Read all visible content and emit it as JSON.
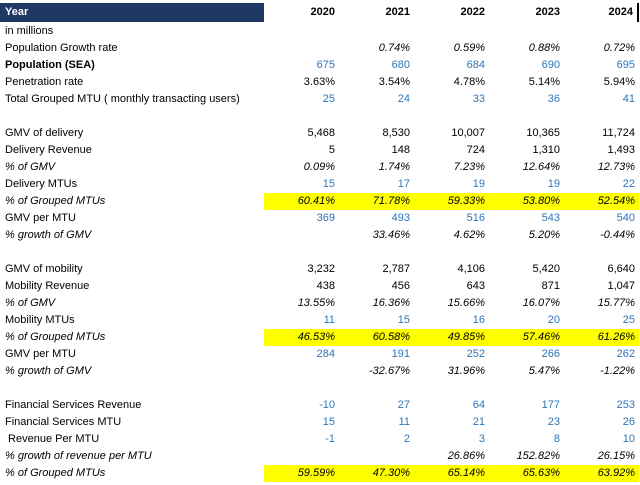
{
  "sheet": {
    "header": {
      "label": "Year",
      "years": [
        "2020",
        "2021",
        "2022",
        "2023",
        "2024"
      ]
    },
    "colors": {
      "header_bg": "#1F3864",
      "header_text": "#FFFFFF",
      "value_blue": "#2E75B6",
      "highlight_yellow": "#FFFF00",
      "text": "#000000"
    },
    "rows": [
      {
        "label": "in millions",
        "values": [
          "",
          "",
          "",
          "",
          ""
        ]
      },
      {
        "label": "Population Growth rate",
        "values": [
          "",
          "0.74%",
          "0.59%",
          "0.88%",
          "0.72%"
        ],
        "italic_values": true
      },
      {
        "label": "Population (SEA)",
        "values": [
          "675",
          "680",
          "684",
          "690",
          "695"
        ],
        "label_bold": true,
        "values_blue": true
      },
      {
        "label": "Penetration rate",
        "values": [
          "3.63%",
          "3.54%",
          "4.78%",
          "5.14%",
          "5.94%"
        ]
      },
      {
        "label": "Total Grouped MTU ( monthly transacting users)",
        "values": [
          "25",
          "24",
          "33",
          "36",
          "41"
        ],
        "values_blue": true
      },
      {
        "blank": true
      },
      {
        "label": "GMV of delivery",
        "values": [
          "5,468",
          "8,530",
          "10,007",
          "10,365",
          "11,724"
        ]
      },
      {
        "label": "Delivery Revenue",
        "values": [
          "5",
          "148",
          "724",
          "1,310",
          "1,493"
        ]
      },
      {
        "label": "% of GMV",
        "values": [
          "0.09%",
          "1.74%",
          "7.23%",
          "12.64%",
          "12.73%"
        ],
        "italic_label": true,
        "italic_values": true
      },
      {
        "label": "Delivery MTUs",
        "values": [
          "15",
          "17",
          "19",
          "19",
          "22"
        ],
        "values_blue": true
      },
      {
        "label": "% of Grouped MTUs",
        "values": [
          "60.41%",
          "71.78%",
          "59.33%",
          "53.80%",
          "52.54%"
        ],
        "italic_label": true,
        "italic_values": true,
        "highlight": true
      },
      {
        "label": "GMV per MTU",
        "values": [
          "369",
          "493",
          "516",
          "543",
          "540"
        ],
        "values_blue": true
      },
      {
        "label": "% growth of GMV",
        "values": [
          "",
          "33.46%",
          "4.62%",
          "5.20%",
          "-0.44%"
        ],
        "italic_label": true,
        "italic_values": true
      },
      {
        "blank": true
      },
      {
        "label": "GMV of mobility",
        "values": [
          "3,232",
          "2,787",
          "4,106",
          "5,420",
          "6,640"
        ]
      },
      {
        "label": "Mobility Revenue",
        "values": [
          "438",
          "456",
          "643",
          "871",
          "1,047"
        ]
      },
      {
        "label": "% of GMV",
        "values": [
          "13.55%",
          "16.36%",
          "15.66%",
          "16.07%",
          "15.77%"
        ],
        "italic_label": true,
        "italic_values": true
      },
      {
        "label": "Mobility MTUs",
        "values": [
          "11",
          "15",
          "16",
          "20",
          "25"
        ],
        "values_blue": true
      },
      {
        "label": "% of Grouped MTUs",
        "values": [
          "46.53%",
          "60.58%",
          "49.85%",
          "57.46%",
          "61.26%"
        ],
        "italic_label": true,
        "italic_values": true,
        "highlight": true
      },
      {
        "label": "GMV per MTU",
        "values": [
          "284",
          "191",
          "252",
          "266",
          "262"
        ],
        "values_blue": true
      },
      {
        "label": "% growth of GMV",
        "values": [
          "",
          "-32.67%",
          "31.96%",
          "5.47%",
          "-1.22%"
        ],
        "italic_label": true,
        "italic_values": true
      },
      {
        "blank": true
      },
      {
        "label": "Financial Services Revenue",
        "values": [
          "-10",
          "27",
          "64",
          "177",
          "253"
        ],
        "values_blue": true
      },
      {
        "label": "Financial Services MTU",
        "values": [
          "15",
          "11",
          "21",
          "23",
          "26"
        ],
        "values_blue": true
      },
      {
        "label": " Revenue Per MTU",
        "values": [
          "-1",
          "2",
          "3",
          "8",
          "10"
        ],
        "values_blue": true
      },
      {
        "label": "% growth of revenue per MTU",
        "values": [
          "",
          "",
          "26.86%",
          "152.82%",
          "26.15%"
        ],
        "italic_label": true,
        "italic_values": true
      },
      {
        "label": "% of Grouped MTUs",
        "values": [
          "59.59%",
          "47.30%",
          "65.14%",
          "65.63%",
          "63.92%"
        ],
        "italic_label": true,
        "italic_values": true,
        "highlight": true
      }
    ]
  }
}
